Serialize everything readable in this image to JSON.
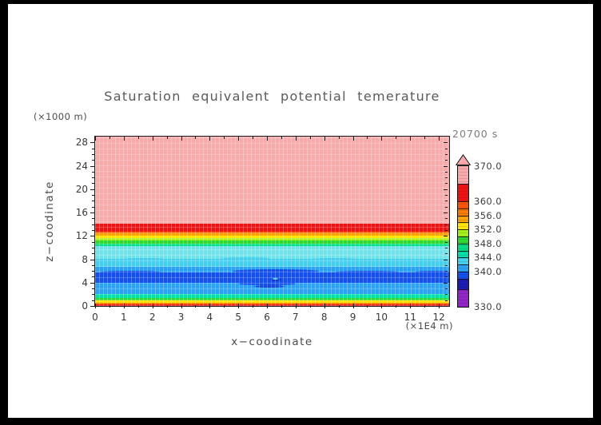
{
  "title": "Saturation equivalent potential temerature",
  "annotations": {
    "time_label": "20700 s"
  },
  "axes": {
    "x": {
      "label": "x−coodinate",
      "unit_label": "(×1E4 m)",
      "major_ticks": [
        0,
        1,
        2,
        3,
        4,
        5,
        6,
        7,
        8,
        9,
        10,
        11,
        12
      ],
      "minor_step": 0.5,
      "max": 12.36
    },
    "y": {
      "label": "z−coodinate",
      "unit_label": "(×1000 m)",
      "major_ticks": [
        0,
        4,
        8,
        12,
        16,
        20,
        24,
        28
      ],
      "minor_step": 1,
      "max": 29
    }
  },
  "chart_data": {
    "type": "heatmap",
    "title": "Saturation equivalent potential temerature",
    "xlabel": "x−coodinate (×1E4 m)",
    "ylabel": "z−coodinate (×1000 m)",
    "field": "saturation equivalent potential temperature (K)",
    "time": "20700 s",
    "x_range": [
      0,
      12.36
    ],
    "z_range": [
      0,
      29
    ],
    "grid": false,
    "legend_position": "right",
    "bands": [
      {
        "z": [
          0,
          0.4
        ],
        "value": [
          360,
          365
        ],
        "color": "#ef1212"
      },
      {
        "z": [
          0.4,
          0.68
        ],
        "value": [
          356,
          358
        ],
        "color": "#ff7a00"
      },
      {
        "z": [
          0.68,
          0.98
        ],
        "value": [
          352,
          354
        ],
        "color": "#ffe400"
      },
      {
        "z": [
          0.98,
          1.5
        ],
        "value": [
          348,
          350
        ],
        "color": "#2fd92f"
      },
      {
        "z": [
          1.5,
          2.2
        ],
        "value": [
          344,
          346
        ],
        "color": "#00e2a9"
      },
      {
        "z": [
          2.2,
          4.0
        ],
        "value": [
          340,
          342
        ],
        "color": "#2aa2f7"
      },
      {
        "z": [
          4.0,
          5.8
        ],
        "value": [
          338,
          340
        ],
        "color": "#1450ee"
      },
      {
        "z": [
          5.8,
          6.8
        ],
        "value": [
          340,
          342
        ],
        "color": "#2aa2f7"
      },
      {
        "z": [
          6.8,
          8.1
        ],
        "value": [
          342,
          344
        ],
        "color": "#45cfee"
      },
      {
        "z": [
          8.1,
          10.4
        ],
        "value": [
          344,
          346
        ],
        "color": "#6fe3e9"
      },
      {
        "z": [
          10.4,
          10.8
        ],
        "value": [
          346,
          348
        ],
        "color": "#00df82"
      },
      {
        "z": [
          10.8,
          11.35
        ],
        "value": [
          348,
          350
        ],
        "color": "#2fd92f"
      },
      {
        "z": [
          11.35,
          11.65
        ],
        "value": [
          350,
          352
        ],
        "color": "#a6ef18"
      },
      {
        "z": [
          11.65,
          12.1
        ],
        "value": [
          352,
          354
        ],
        "color": "#ffe400"
      },
      {
        "z": [
          12.1,
          12.5
        ],
        "value": [
          354,
          356
        ],
        "color": "#ffa400"
      },
      {
        "z": [
          12.5,
          12.85
        ],
        "value": [
          358,
          360
        ],
        "color": "#ff6100"
      },
      {
        "z": [
          12.85,
          14.2
        ],
        "value": [
          360,
          365
        ],
        "color": "#ef1212"
      },
      {
        "z": [
          14.2,
          29
        ],
        "value": [
          365,
          370
        ],
        "color": "#f8a9a9"
      }
    ],
    "features": [
      {
        "x": [
          0.2,
          2.3
        ],
        "z": [
          5.55,
          6.05
        ],
        "color": "#1450ee"
      },
      {
        "x": [
          4.8,
          7.8
        ],
        "z": [
          5.6,
          6.3
        ],
        "color": "#1450ee"
      },
      {
        "x": [
          8.4,
          10.6
        ],
        "z": [
          5.6,
          6.05
        ],
        "color": "#1450ee"
      },
      {
        "x": [
          11.2,
          12.36
        ],
        "z": [
          5.55,
          6.0
        ],
        "color": "#1450ee"
      },
      {
        "x": [
          5.0,
          7.0
        ],
        "z": [
          3.55,
          4.05
        ],
        "color": "#1450ee"
      },
      {
        "x": [
          5.55,
          6.6
        ],
        "z": [
          3.15,
          3.62
        ],
        "color": "#1647d6"
      },
      {
        "x": [
          6.1,
          6.5
        ],
        "z": [
          4.3,
          4.85
        ],
        "color": "#0e36c8"
      },
      {
        "x": [
          6.18,
          6.4
        ],
        "z": [
          4.5,
          4.73
        ],
        "color": "#49dce8"
      },
      {
        "x": [
          4.4,
          6.1
        ],
        "z": [
          7.8,
          8.3
        ],
        "color": "#45cfee"
      },
      {
        "x": [
          7.5,
          9.2
        ],
        "z": [
          7.85,
          8.25
        ],
        "color": "#45cfee"
      },
      {
        "x": [
          1.0,
          2.4
        ],
        "z": [
          7.9,
          8.25
        ],
        "color": "#45cfee"
      }
    ],
    "colorbar": {
      "value_range": [
        330,
        370
      ],
      "labels": [
        "370.0",
        "360.0",
        "356.0",
        "352.0",
        "348.0",
        "344.0",
        "340.0",
        "330.0"
      ],
      "label_values": [
        370,
        360,
        356,
        352,
        348,
        344,
        340,
        330
      ],
      "overflow_arrow_color": "#f8a9a9",
      "segments": [
        {
          "range": [
            365,
            370
          ],
          "color": "#f8a9a9"
        },
        {
          "range": [
            360,
            365
          ],
          "color": "#ef1212"
        },
        {
          "range": [
            358,
            360
          ],
          "color": "#ff5400"
        },
        {
          "range": [
            356,
            358
          ],
          "color": "#ff7a00"
        },
        {
          "range": [
            354,
            356
          ],
          "color": "#ffa400"
        },
        {
          "range": [
            352,
            354
          ],
          "color": "#ffe400"
        },
        {
          "range": [
            350,
            352
          ],
          "color": "#a6ef18"
        },
        {
          "range": [
            348,
            350
          ],
          "color": "#2fd92f"
        },
        {
          "range": [
            346,
            348
          ],
          "color": "#00df82"
        },
        {
          "range": [
            344,
            346
          ],
          "color": "#00e2a9"
        },
        {
          "range": [
            342,
            344
          ],
          "color": "#45cfee"
        },
        {
          "range": [
            340,
            342
          ],
          "color": "#2aa2f7"
        },
        {
          "range": [
            338,
            340
          ],
          "color": "#1450ee"
        },
        {
          "range": [
            335,
            338
          ],
          "color": "#1c1cb8"
        },
        {
          "range": [
            330,
            335
          ],
          "color": "#9025c8"
        }
      ]
    }
  }
}
